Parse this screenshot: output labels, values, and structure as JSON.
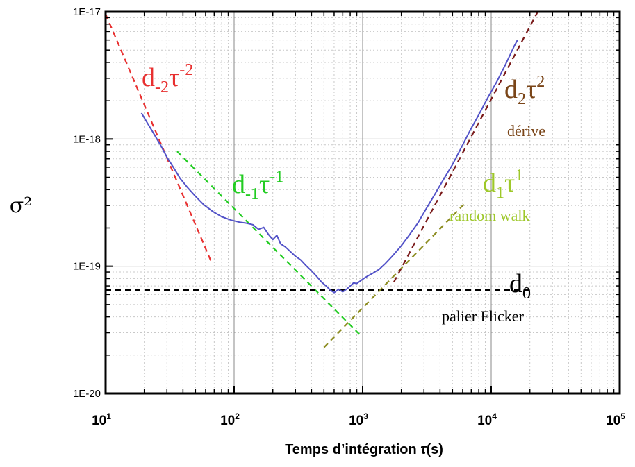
{
  "chart_data": {
    "type": "line",
    "xscale": "log",
    "yscale": "log",
    "xlim": [
      10,
      100000
    ],
    "ylim": [
      1e-20,
      1e-17
    ],
    "xticks": [
      {
        "value": 10,
        "base": "10",
        "exp": "1"
      },
      {
        "value": 100,
        "base": "10",
        "exp": "2"
      },
      {
        "value": 1000,
        "base": "10",
        "exp": "3"
      },
      {
        "value": 10000,
        "base": "10",
        "exp": "4"
      },
      {
        "value": 100000,
        "base": "10",
        "exp": "5"
      }
    ],
    "yticks": [
      {
        "value": 1e-17,
        "label": "1E-17"
      },
      {
        "value": 1e-18,
        "label": "1E-18"
      },
      {
        "value": 1e-19,
        "label": "1E-19"
      },
      {
        "value": 1e-20,
        "label": "1E-20"
      }
    ],
    "xlabel": {
      "prefix": "Temps d’intégration ",
      "symbol": "τ",
      "suffix": "(s)"
    },
    "ylabel": "σ²",
    "grid": true,
    "measured": {
      "color": "#5252c8",
      "x": [
        19,
        21,
        24,
        27,
        30,
        34,
        38,
        43,
        50,
        58,
        68,
        80,
        95,
        110,
        125,
        140,
        155,
        170,
        185,
        200,
        215,
        230,
        250,
        275,
        300,
        330,
        360,
        400,
        440,
        480,
        520,
        560,
        600,
        650,
        700,
        750,
        800,
        850,
        900,
        1000,
        1100,
        1200,
        1350,
        1500,
        1700,
        2000,
        2300,
        2700,
        3100,
        3600,
        4200,
        5000,
        5800,
        6800,
        8000,
        9500,
        11000,
        13000,
        15000,
        16000
      ],
      "y": [
        1.6e-18,
        1.35e-18,
        1.08e-18,
        8.8e-19,
        7.2e-19,
        5.9e-19,
        4.9e-19,
        4.2e-19,
        3.55e-19,
        3.05e-19,
        2.7e-19,
        2.45e-19,
        2.3e-19,
        2.22e-19,
        2.18e-19,
        2.12e-19,
        1.95e-19,
        2.02e-19,
        1.78e-19,
        1.62e-19,
        1.75e-19,
        1.5e-19,
        1.42e-19,
        1.3e-19,
        1.2e-19,
        1.12e-19,
        1.02e-19,
        9.2e-20,
        8.3e-20,
        7.5e-20,
        7e-20,
        6.5e-20,
        6.2e-20,
        6.6e-20,
        6.3e-20,
        6.6e-20,
        7e-20,
        7.4e-20,
        7.3e-20,
        7.9e-20,
        8.4e-20,
        8.8e-20,
        9.5e-20,
        1.05e-19,
        1.2e-19,
        1.45e-19,
        1.75e-19,
        2.2e-19,
        2.8e-19,
        3.6e-19,
        4.7e-19,
        6.3e-19,
        8.4e-19,
        1.15e-18,
        1.55e-18,
        2.15e-18,
        2.8e-18,
        3.9e-18,
        5.3e-18,
        6e-18
      ]
    },
    "fits": [
      {
        "name": "d-2",
        "slope": -2,
        "color": "#e83030",
        "x1": 10,
        "y1": 9.6e-18,
        "x2": 66,
        "y2": 1.1e-19
      },
      {
        "name": "d-1",
        "slope": -1,
        "color": "#22cc22",
        "x1": 36,
        "y1": 8e-19,
        "x2": 950,
        "y2": 2.9e-20
      },
      {
        "name": "d0",
        "slope": 0,
        "color": "#000000",
        "x1": 10,
        "y1": 6.5e-20,
        "x2": 20000,
        "y2": 6.5e-20
      },
      {
        "name": "d1",
        "slope": 1,
        "color": "#8c8c20",
        "x1": 500,
        "y1": 2.3e-20,
        "x2": 6200,
        "y2": 3.1e-19
      },
      {
        "name": "d2",
        "slope": 2,
        "color": "#7a1a1a",
        "x1": 1750,
        "y1": 7.5e-20,
        "x2": 23000,
        "y2": 1e-17
      }
    ],
    "annotations": [
      {
        "name": "d-2",
        "color": "#e83030",
        "d_sub": "-2",
        "tau_exp": "-2",
        "caption": ""
      },
      {
        "name": "d-1",
        "color": "#22cc22",
        "d_sub": "-1",
        "tau_exp": "-1",
        "caption": ""
      },
      {
        "name": "d2",
        "color": "#7a4518",
        "d_sub": "2",
        "tau_exp": "2",
        "caption": "dérive"
      },
      {
        "name": "d1",
        "color": "#9ec82a",
        "d_sub": "1",
        "tau_exp": "1",
        "caption": "random walk"
      },
      {
        "name": "d0",
        "color": "#000000",
        "d_sub": "0",
        "tau_exp": "",
        "caption": "palier Flicker"
      }
    ]
  }
}
